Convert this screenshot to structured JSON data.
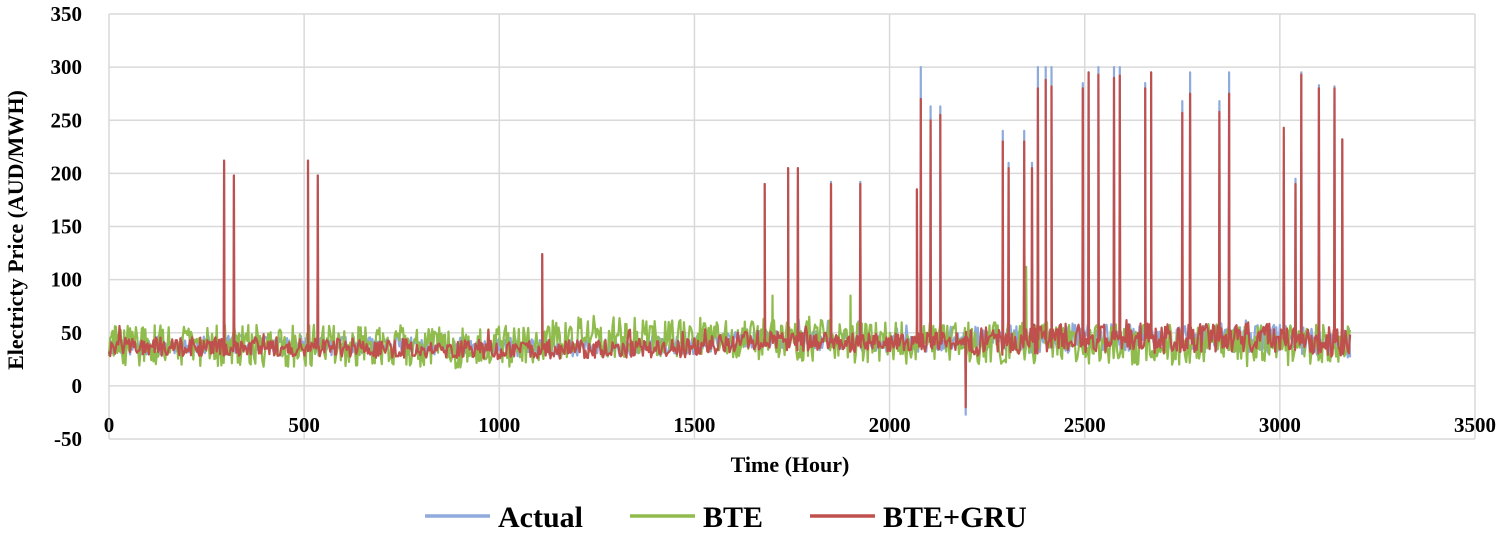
{
  "chart_data": {
    "type": "line",
    "title": "",
    "xlabel": "Time (Hour)",
    "ylabel": "Electricty Price (AUD/MWH)",
    "xlim": [
      0,
      3500
    ],
    "ylim": [
      -50,
      350
    ],
    "xticks": [
      0,
      500,
      1000,
      1500,
      2000,
      2500,
      3000,
      3500
    ],
    "yticks": [
      -50,
      0,
      50,
      100,
      150,
      200,
      250,
      300,
      350
    ],
    "x_tick_labels": [
      "0",
      "500",
      "1000",
      "1500",
      "2000",
      "2500",
      "3000",
      "3500"
    ],
    "y_tick_labels": [
      "-50",
      "0",
      "50",
      "100",
      "150",
      "200",
      "250",
      "300",
      "350"
    ],
    "grid": true,
    "legend_position": "bottom",
    "x_end": 3180,
    "series": [
      {
        "name": "Actual",
        "color": "#8faadc",
        "baseline": [
          [
            0,
            38
          ],
          [
            500,
            38
          ],
          [
            1000,
            36
          ],
          [
            1500,
            38
          ],
          [
            1650,
            45
          ],
          [
            2000,
            40
          ],
          [
            2500,
            45
          ],
          [
            3000,
            45
          ],
          [
            3180,
            40
          ]
        ],
        "spikes": [
          [
            295,
            212
          ],
          [
            320,
            198
          ],
          [
            510,
            212
          ],
          [
            535,
            198
          ],
          [
            1110,
            124
          ],
          [
            1680,
            190
          ],
          [
            1740,
            205
          ],
          [
            1765,
            205
          ],
          [
            1850,
            192
          ],
          [
            1925,
            192
          ],
          [
            2070,
            185
          ],
          [
            2080,
            300
          ],
          [
            2105,
            263
          ],
          [
            2130,
            263
          ],
          [
            2195,
            -27
          ],
          [
            2290,
            240
          ],
          [
            2305,
            210
          ],
          [
            2345,
            240
          ],
          [
            2365,
            210
          ],
          [
            2380,
            300
          ],
          [
            2400,
            300
          ],
          [
            2415,
            300
          ],
          [
            2495,
            285
          ],
          [
            2510,
            295
          ],
          [
            2535,
            300
          ],
          [
            2575,
            300
          ],
          [
            2590,
            300
          ],
          [
            2655,
            285
          ],
          [
            2670,
            295
          ],
          [
            2750,
            268
          ],
          [
            2770,
            295
          ],
          [
            2845,
            268
          ],
          [
            2870,
            295
          ],
          [
            3010,
            195
          ],
          [
            3040,
            195
          ],
          [
            3055,
            295
          ],
          [
            3100,
            283
          ],
          [
            3140,
            282
          ],
          [
            3160,
            232
          ]
        ]
      },
      {
        "name": "BTE",
        "color": "#8fbc4d",
        "baseline": [
          [
            0,
            38
          ],
          [
            500,
            38
          ],
          [
            1000,
            36
          ],
          [
            1200,
            45
          ],
          [
            1500,
            48
          ],
          [
            1650,
            45
          ],
          [
            2000,
            40
          ],
          [
            2500,
            40
          ],
          [
            3000,
            38
          ],
          [
            3180,
            38
          ]
        ],
        "spikes": [
          [
            1680,
            90
          ],
          [
            1700,
            85
          ],
          [
            1850,
            80
          ],
          [
            1900,
            85
          ],
          [
            2350,
            112
          ],
          [
            2400,
            95
          ]
        ]
      },
      {
        "name": "BTE+GRU",
        "color": "#c0504d",
        "baseline": [
          [
            0,
            37
          ],
          [
            500,
            37
          ],
          [
            1000,
            34
          ],
          [
            1500,
            36
          ],
          [
            1650,
            43
          ],
          [
            2000,
            40
          ],
          [
            2500,
            45
          ],
          [
            3000,
            45
          ],
          [
            3180,
            40
          ]
        ],
        "spikes": [
          [
            295,
            212
          ],
          [
            320,
            198
          ],
          [
            510,
            212
          ],
          [
            535,
            198
          ],
          [
            1110,
            124
          ],
          [
            1680,
            190
          ],
          [
            1740,
            205
          ],
          [
            1765,
            205
          ],
          [
            1850,
            190
          ],
          [
            1925,
            190
          ],
          [
            2070,
            185
          ],
          [
            2080,
            270
          ],
          [
            2105,
            250
          ],
          [
            2130,
            255
          ],
          [
            2195,
            -20
          ],
          [
            2290,
            230
          ],
          [
            2305,
            205
          ],
          [
            2345,
            230
          ],
          [
            2365,
            205
          ],
          [
            2380,
            280
          ],
          [
            2400,
            288
          ],
          [
            2415,
            282
          ],
          [
            2495,
            280
          ],
          [
            2510,
            295
          ],
          [
            2535,
            293
          ],
          [
            2575,
            290
          ],
          [
            2590,
            292
          ],
          [
            2655,
            280
          ],
          [
            2670,
            295
          ],
          [
            2750,
            257
          ],
          [
            2770,
            275
          ],
          [
            2845,
            258
          ],
          [
            2870,
            275
          ],
          [
            3010,
            243
          ],
          [
            3040,
            190
          ],
          [
            3055,
            293
          ],
          [
            3100,
            280
          ],
          [
            3140,
            280
          ],
          [
            3160,
            232
          ]
        ]
      }
    ]
  }
}
